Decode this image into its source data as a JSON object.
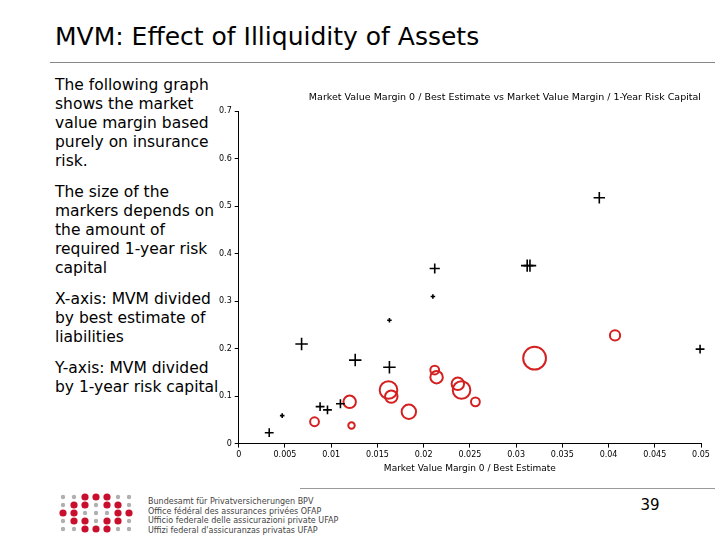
{
  "title": "MVM: Effect of Illiquidity of Assets",
  "text_blocks": [
    "The following graph shows the market value margin based purely on insurance risk.",
    "The size of the markers depends on the amount of required 1-year risk capital",
    "X-axis: MVM divided by best estimate of liabilities",
    "Y-axis: MVM divided by 1-year risk capital"
  ],
  "footer": {
    "lines": [
      "Bundesamt für Privatversicherungen BPV",
      "Office fédéral des assurances privées OFAP",
      "Ufficio federale delle assicurazioni private UFAP",
      "Uffizi federal d'assicuranzas privatas UFAP"
    ],
    "page_number": 39
  },
  "chart_data": {
    "type": "scatter",
    "title": "Market Value Margin 0 / Best Estimate vs Market Value Margin / 1-Year Risk Capital",
    "x_label": "Market Value Margin 0 / Best Estimate",
    "xlim": [
      0,
      0.05
    ],
    "xticks": [
      0,
      0.005,
      0.01,
      0.015,
      0.02,
      0.025,
      0.03,
      0.035,
      0.04,
      0.045,
      0.05
    ],
    "ylim": [
      0,
      0.7
    ],
    "yticks": [
      0,
      0.1,
      0.2,
      0.3,
      0.4,
      0.5,
      0.6,
      0.7
    ],
    "grid": false,
    "series": [
      {
        "color": "#000000",
        "marker": "plus",
        "x": [
          0.0033,
          0.0047,
          0.0068,
          0.0088,
          0.0096,
          0.011,
          0.0126,
          0.0163,
          0.0163,
          0.021,
          0.0212,
          0.0312,
          0.0315,
          0.039,
          0.0499
        ],
        "y": [
          0.023,
          0.059,
          0.21,
          0.078,
          0.071,
          0.084,
          0.176,
          0.26,
          0.161,
          0.31,
          0.369,
          0.375,
          0.375,
          0.518,
          0.199
        ],
        "risk_capital": [
          1.5,
          0.4,
          3,
          1.5,
          1.5,
          1.5,
          3,
          0.4,
          3,
          0.4,
          2,
          3,
          3,
          2.5,
          1.5
        ]
      },
      {
        "color": "#d42020",
        "marker": "circle",
        "x": [
          0.0082,
          0.012,
          0.0122,
          0.0162,
          0.0165,
          0.0184,
          0.0212,
          0.0214,
          0.0237,
          0.0241,
          0.0256,
          0.032,
          0.0407
        ],
        "y": [
          0.046,
          0.088,
          0.038,
          0.113,
          0.099,
          0.067,
          0.155,
          0.14,
          0.126,
          0.113,
          0.088,
          0.18,
          0.228
        ],
        "risk_capital": [
          1.5,
          3,
          0.8,
          6,
          3,
          4,
          1.5,
          3,
          3,
          6,
          1.5,
          10,
          2
        ]
      }
    ]
  }
}
